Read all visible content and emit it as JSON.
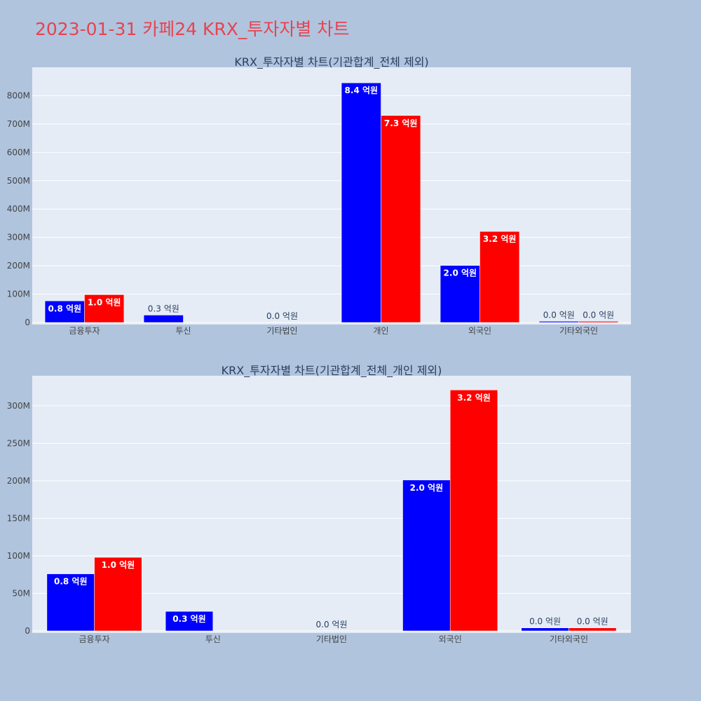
{
  "page_title": "2023-01-31 카페24 KRX_투자자별 차트",
  "colors": {
    "background": "#b0c4de",
    "plot_bg": "#e5ecf6",
    "series_a": "#0000ff",
    "series_b": "#ff0000",
    "title": "#e8434f"
  },
  "chart_data": [
    {
      "type": "bar",
      "title": "KRX_투자자별 차트(기관합계_전체 제외)",
      "categories": [
        "금융투자",
        "투신",
        "기타법인",
        "개인",
        "외국인",
        "기타외국인"
      ],
      "series": [
        {
          "values": [
            76000000,
            26000000,
            0,
            845000000,
            201000000,
            4000000
          ],
          "labels": [
            "0.8 억원",
            "0.3 억원",
            "0.0 억원",
            "8.4 억원",
            "2.0 억원",
            "0.0 억원"
          ]
        },
        {
          "values": [
            98000000,
            0,
            0,
            730000000,
            321000000,
            4000000
          ],
          "labels": [
            "1.0 억원",
            "",
            "",
            "7.3 억원",
            "3.2 억원",
            "0.0 억원"
          ]
        }
      ],
      "ylim": [
        0,
        900000000
      ],
      "yticks": [
        0,
        100000000,
        200000000,
        300000000,
        400000000,
        500000000,
        600000000,
        700000000,
        800000000
      ],
      "ytick_labels": [
        "0",
        "100M",
        "200M",
        "300M",
        "400M",
        "500M",
        "600M",
        "700M",
        "800M"
      ],
      "grid": true,
      "legend": "none"
    },
    {
      "type": "bar",
      "title": "KRX_투자자별 차트(기관합계_전체_개인 제외)",
      "categories": [
        "금융투자",
        "투신",
        "기타법인",
        "외국인",
        "기타외국인"
      ],
      "series": [
        {
          "values": [
            76000000,
            26000000,
            0,
            201000000,
            4000000
          ],
          "labels": [
            "0.8 억원",
            "0.3 억원",
            "0.0 억원",
            "2.0 억원",
            "0.0 억원"
          ]
        },
        {
          "values": [
            98000000,
            0,
            0,
            321000000,
            4000000
          ],
          "labels": [
            "1.0 억원",
            "",
            "",
            "3.2 억원",
            "0.0 억원"
          ]
        }
      ],
      "ylim": [
        0,
        340000000
      ],
      "yticks": [
        0,
        50000000,
        100000000,
        150000000,
        200000000,
        250000000,
        300000000
      ],
      "ytick_labels": [
        "0",
        "50M",
        "100M",
        "150M",
        "200M",
        "250M",
        "300M"
      ],
      "grid": true,
      "legend": "none"
    }
  ]
}
